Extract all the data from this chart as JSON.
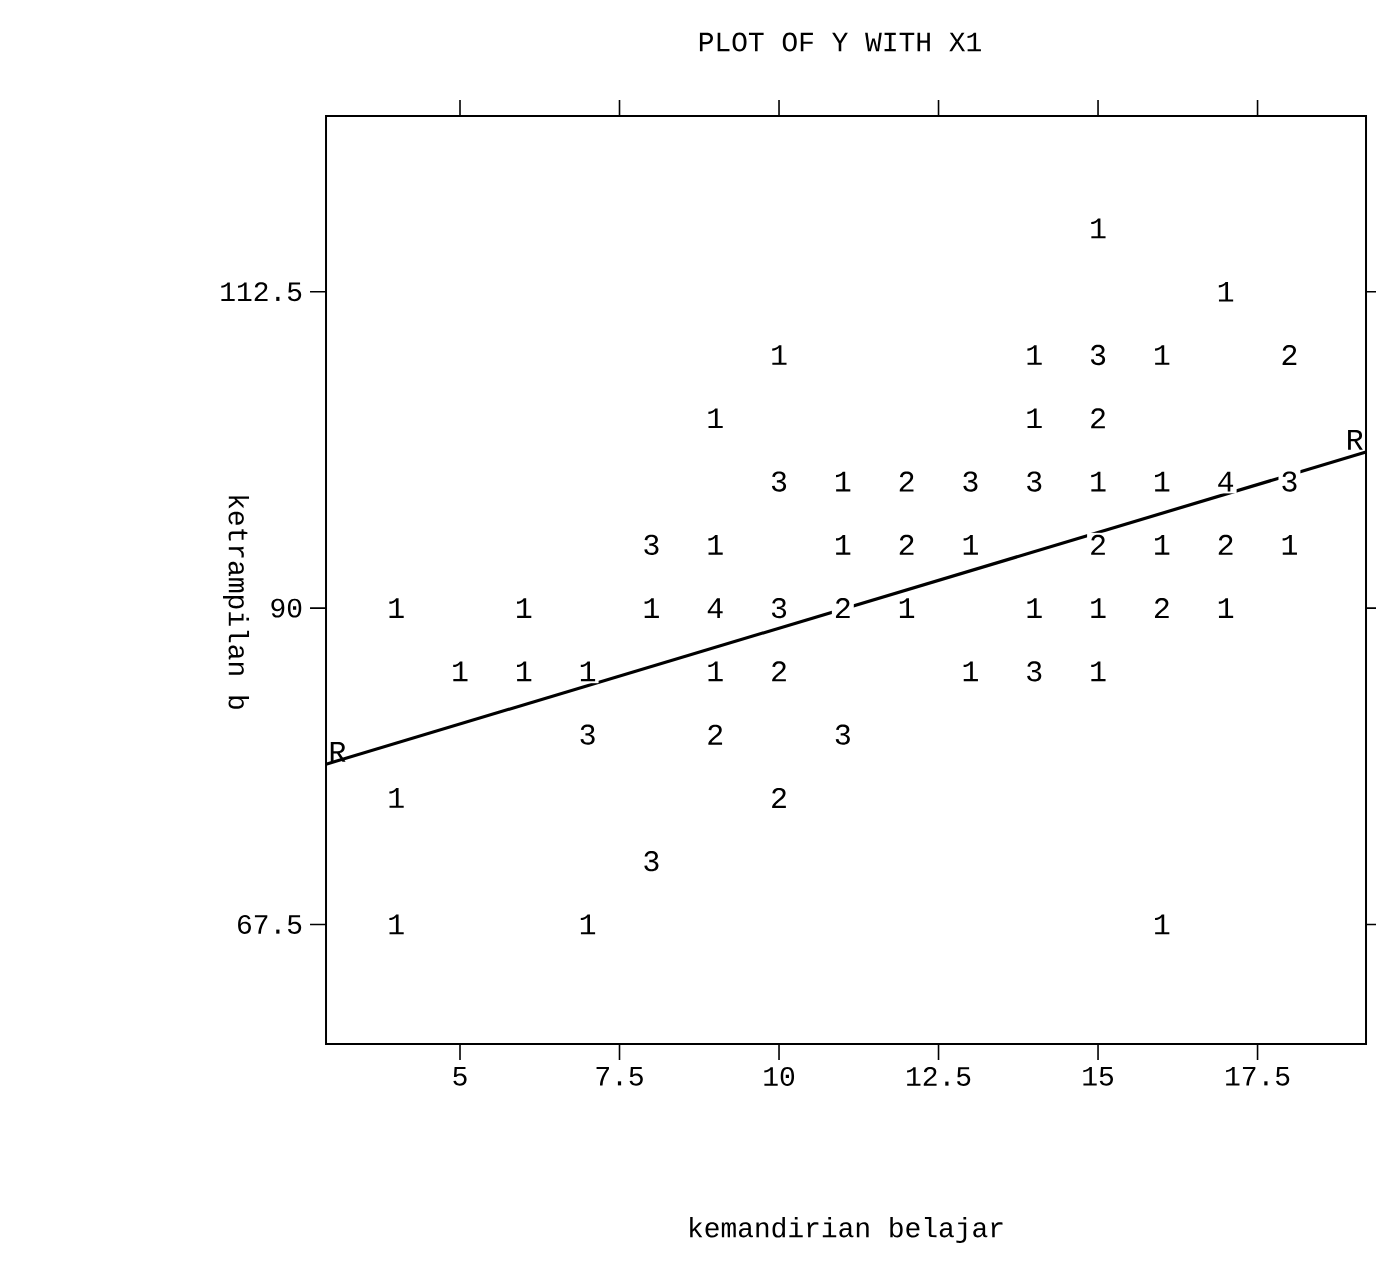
{
  "chart_data": {
    "type": "line",
    "title": "PLOT OF Y WITH X1",
    "xlabel": "kemandirian belajar",
    "ylabel": "ketrampilan b",
    "xlim": [
      2.9,
      19.2
    ],
    "ylim": [
      59,
      125
    ],
    "xticks": [
      5,
      7.5,
      10,
      12.5,
      15,
      17.5
    ],
    "yticks": [
      67.5,
      90,
      112.5
    ],
    "series": [
      {
        "color": "#000000",
        "x": [
          2.9,
          19.2
        ],
        "values": [
          78.9,
          101.1
        ]
      }
    ],
    "annotations": [
      {
        "text": "R",
        "x": 2.9,
        "y": 78.9
      },
      {
        "text": "R",
        "x": 19.2,
        "y": 101.1
      },
      {
        "text": "1",
        "x": 15,
        "y": 117
      },
      {
        "text": "1",
        "x": 17,
        "y": 112.5
      },
      {
        "text": "1",
        "x": 10,
        "y": 108
      },
      {
        "text": "1",
        "x": 14,
        "y": 108
      },
      {
        "text": "3",
        "x": 15,
        "y": 108
      },
      {
        "text": "1",
        "x": 16,
        "y": 108
      },
      {
        "text": "2",
        "x": 18,
        "y": 108
      },
      {
        "text": "1",
        "x": 9,
        "y": 103.5
      },
      {
        "text": "1",
        "x": 14,
        "y": 103.5
      },
      {
        "text": "2",
        "x": 15,
        "y": 103.5
      },
      {
        "text": "3",
        "x": 10,
        "y": 99
      },
      {
        "text": "1",
        "x": 11,
        "y": 99
      },
      {
        "text": "2",
        "x": 12,
        "y": 99
      },
      {
        "text": "3",
        "x": 13,
        "y": 99
      },
      {
        "text": "3",
        "x": 14,
        "y": 99
      },
      {
        "text": "1",
        "x": 15,
        "y": 99
      },
      {
        "text": "1",
        "x": 16,
        "y": 99
      },
      {
        "text": "4",
        "x": 17,
        "y": 99
      },
      {
        "text": "3",
        "x": 18,
        "y": 99
      },
      {
        "text": "3",
        "x": 8,
        "y": 94.5
      },
      {
        "text": "1",
        "x": 9,
        "y": 94.5
      },
      {
        "text": "1",
        "x": 11,
        "y": 94.5
      },
      {
        "text": "2",
        "x": 12,
        "y": 94.5
      },
      {
        "text": "1",
        "x": 13,
        "y": 94.5
      },
      {
        "text": "2",
        "x": 15,
        "y": 94.5
      },
      {
        "text": "1",
        "x": 16,
        "y": 94.5
      },
      {
        "text": "2",
        "x": 17,
        "y": 94.5
      },
      {
        "text": "1",
        "x": 18,
        "y": 94.5
      },
      {
        "text": "1",
        "x": 4,
        "y": 90
      },
      {
        "text": "1",
        "x": 6,
        "y": 90
      },
      {
        "text": "1",
        "x": 8,
        "y": 90
      },
      {
        "text": "4",
        "x": 9,
        "y": 90
      },
      {
        "text": "3",
        "x": 10,
        "y": 90
      },
      {
        "text": "2",
        "x": 11,
        "y": 90
      },
      {
        "text": "1",
        "x": 12,
        "y": 90
      },
      {
        "text": "1",
        "x": 14,
        "y": 90
      },
      {
        "text": "1",
        "x": 15,
        "y": 90
      },
      {
        "text": "2",
        "x": 16,
        "y": 90
      },
      {
        "text": "1",
        "x": 17,
        "y": 90
      },
      {
        "text": "1",
        "x": 5,
        "y": 85.5
      },
      {
        "text": "1",
        "x": 6,
        "y": 85.5
      },
      {
        "text": "1",
        "x": 7,
        "y": 85.5
      },
      {
        "text": "1",
        "x": 9,
        "y": 85.5
      },
      {
        "text": "2",
        "x": 10,
        "y": 85.5
      },
      {
        "text": "1",
        "x": 13,
        "y": 85.5
      },
      {
        "text": "3",
        "x": 14,
        "y": 85.5
      },
      {
        "text": "1",
        "x": 15,
        "y": 85.5
      },
      {
        "text": "3",
        "x": 7,
        "y": 81
      },
      {
        "text": "2",
        "x": 9,
        "y": 81
      },
      {
        "text": "3",
        "x": 11,
        "y": 81
      },
      {
        "text": "1",
        "x": 4,
        "y": 76.5
      },
      {
        "text": "2",
        "x": 10,
        "y": 76.5
      },
      {
        "text": "3",
        "x": 8,
        "y": 72
      },
      {
        "text": "1",
        "x": 4,
        "y": 67.5
      },
      {
        "text": "1",
        "x": 7,
        "y": 67.5
      },
      {
        "text": "1",
        "x": 16,
        "y": 67.5
      }
    ]
  }
}
